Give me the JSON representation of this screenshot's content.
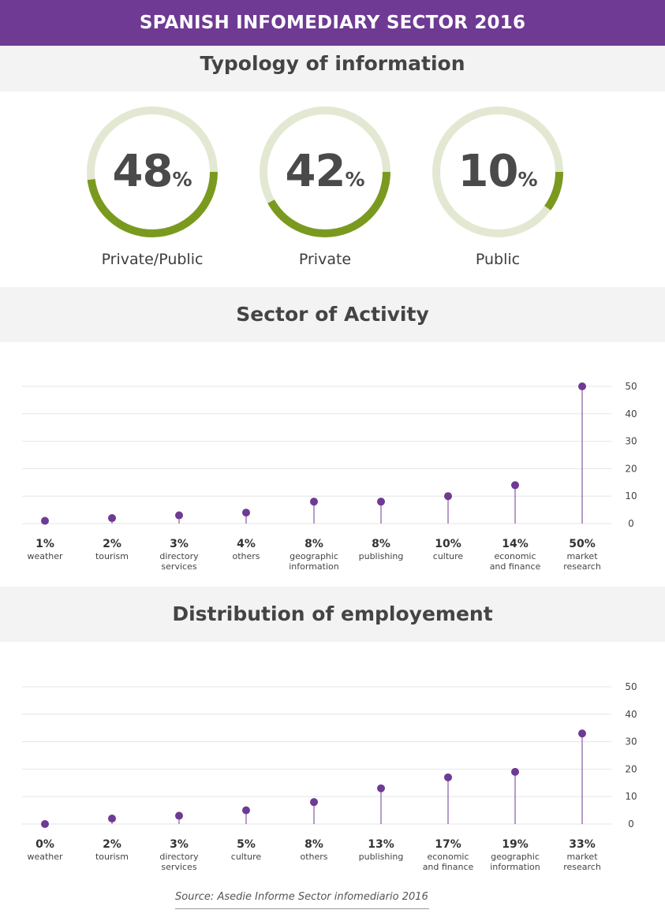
{
  "header": {
    "title": "SPANISH INFOMEDIARY SECTOR 2016"
  },
  "typology": {
    "title": "Typology of information",
    "percent_sign": "%",
    "items": [
      {
        "value": "48",
        "fraction": 0.48,
        "label": "Private/Public"
      },
      {
        "value": "42",
        "fraction": 0.42,
        "label": "Private"
      },
      {
        "value": "10",
        "fraction": 0.1,
        "label": "Public"
      }
    ]
  },
  "colors": {
    "brand_purple": "#6e3a93",
    "ring_green": "#7a9a1f",
    "ring_track": "#e3e8d3",
    "band_gray": "#f3f3f3",
    "dot_purple": "#6e3a93"
  },
  "chart_data": [
    {
      "type": "scatter",
      "title": "Sector of Activity",
      "categories": [
        "weather",
        "tourism",
        "directory services",
        "others",
        "geographic information",
        "publishing",
        "culture",
        "economic and finance",
        "market research"
      ],
      "value_labels": [
        "1%",
        "2%",
        "3%",
        "4%",
        "8%",
        "8%",
        "10%",
        "14%",
        "50%"
      ],
      "values": [
        1,
        2,
        3,
        4,
        8,
        8,
        10,
        14,
        50
      ],
      "ylim": [
        0,
        50
      ],
      "yticks": [
        0,
        10,
        20,
        30,
        40,
        50
      ],
      "grid": true
    },
    {
      "type": "scatter",
      "title": "Distribution of employement",
      "categories": [
        "weather",
        "tourism",
        "directory services",
        "culture",
        "others",
        "publishing",
        "economic and finance",
        "geographic information",
        "market research"
      ],
      "value_labels": [
        "0%",
        "2%",
        "3%",
        "5%",
        "8%",
        "13%",
        "17%",
        "19%",
        "33%"
      ],
      "values": [
        0,
        2,
        3,
        5,
        8,
        13,
        17,
        19,
        33
      ],
      "ylim": [
        0,
        50
      ],
      "yticks": [
        0,
        10,
        20,
        30,
        40,
        50
      ],
      "grid": true
    }
  ],
  "source": "Source: Asedie Informe Sector infomediario 2016"
}
